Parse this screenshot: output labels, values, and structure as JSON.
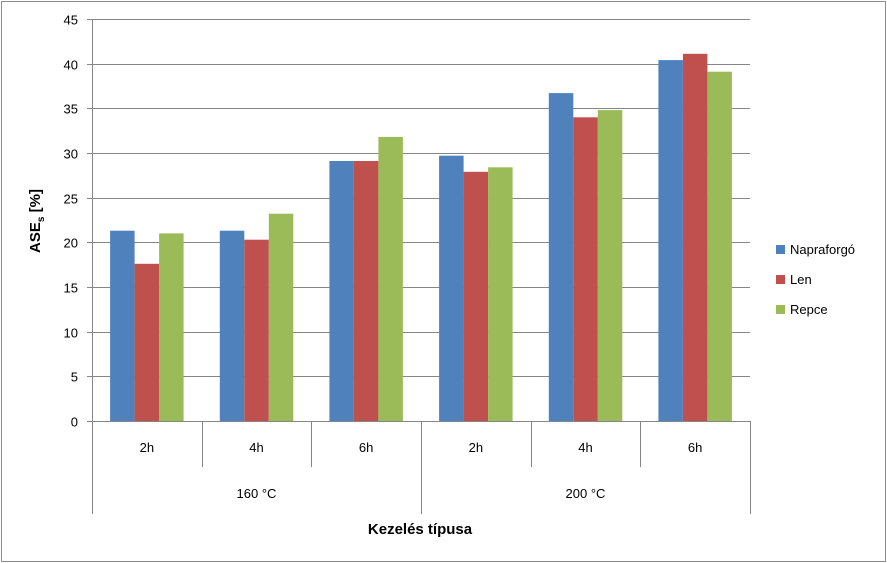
{
  "chart_data": {
    "type": "bar",
    "groups": [
      {
        "label": "160 °C",
        "categories": [
          "2h",
          "4h",
          "6h"
        ]
      },
      {
        "label": "200 °C",
        "categories": [
          "2h",
          "4h",
          "6h"
        ]
      }
    ],
    "categories": [
      "2h",
      "4h",
      "6h",
      "2h",
      "4h",
      "6h"
    ],
    "series": [
      {
        "name": "Napraforgó",
        "color": "#4f81bd",
        "values": [
          21.3,
          21.3,
          29.1,
          29.7,
          36.7,
          40.4
        ]
      },
      {
        "name": "Len",
        "color": "#c0504d",
        "values": [
          17.6,
          20.3,
          29.1,
          27.9,
          34.0,
          41.1
        ]
      },
      {
        "name": "Repce",
        "color": "#9bbb59",
        "values": [
          21.0,
          23.2,
          31.8,
          28.4,
          34.8,
          39.1
        ]
      }
    ],
    "xlabel": "Kezelés típusa",
    "ylabel": "ASE",
    "ylabel_subscript": "s",
    "ylabel_unit": " [%]",
    "ylim": [
      0,
      45
    ],
    "yticks": [
      0,
      5,
      10,
      15,
      20,
      25,
      30,
      35,
      40,
      45
    ],
    "grid": true,
    "legend_position": "right"
  }
}
